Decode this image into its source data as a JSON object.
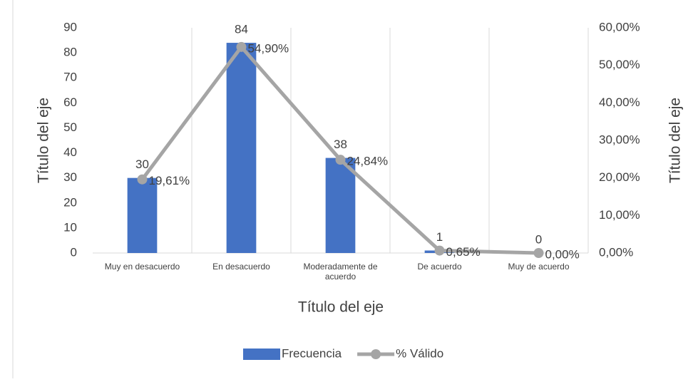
{
  "chart_data": {
    "type": "bar_line",
    "categories": [
      "Muy en desacuerdo",
      "En desacuerdo",
      "Moderadamente de acuerdo",
      "De acuerdo",
      "Muy de acuerdo"
    ],
    "series": [
      {
        "name": "Frecuencia",
        "type": "bar",
        "color": "#4472c4",
        "values": [
          30,
          84,
          38,
          1,
          0
        ]
      },
      {
        "name": "% Válido",
        "type": "line",
        "axis": "y2",
        "color": "#a5a5a5",
        "values": [
          19.61,
          54.9,
          24.84,
          0.65,
          0.0
        ],
        "value_labels": [
          "19,61%",
          "54,90%",
          "24,84%",
          "0,65%",
          "0,00%"
        ]
      }
    ],
    "ylim": [
      0,
      90
    ],
    "yticks": [
      0,
      10,
      20,
      30,
      40,
      50,
      60,
      70,
      80,
      90
    ],
    "y2lim": [
      0,
      60
    ],
    "y2ticks": [
      {
        "value": 0,
        "label": "0,00%"
      },
      {
        "value": 10,
        "label": "10,00%"
      },
      {
        "value": 20,
        "label": "20,00%"
      },
      {
        "value": 30,
        "label": "30,00%"
      },
      {
        "value": 40,
        "label": "40,00%"
      },
      {
        "value": 50,
        "label": "50,00%"
      },
      {
        "value": 60,
        "label": "60,00%"
      }
    ],
    "xlabel": "Título del eje",
    "ylabel": "Título del eje",
    "y2label": "Título del eje",
    "legend": "bottom"
  }
}
